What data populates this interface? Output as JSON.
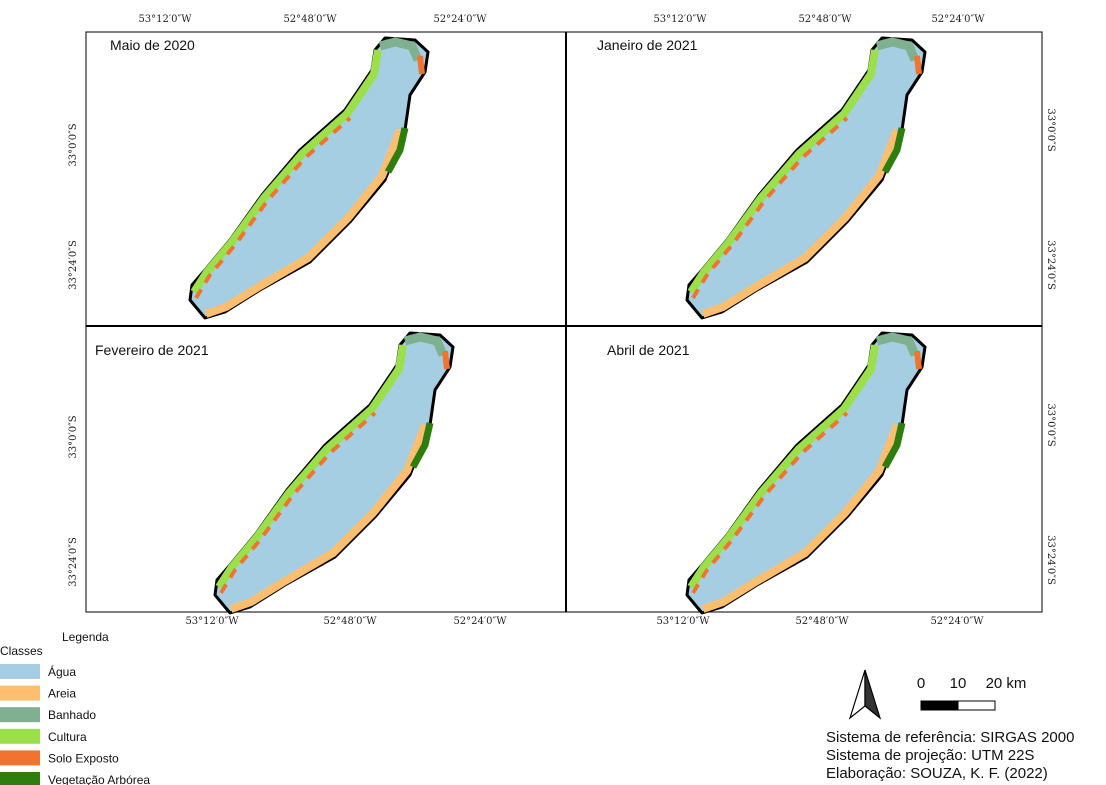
{
  "panels": [
    {
      "title": "Maio de 2020"
    },
    {
      "title": "Janeiro de 2021"
    },
    {
      "title": "Fevereiro de 2021"
    },
    {
      "title": "Abril de 2021"
    }
  ],
  "labels": {
    "top": [
      "53°12′0″W",
      "52°48′0″W",
      "52°24′0″W",
      "53°12′0″W",
      "52°48′0″W",
      "52°24′0″W"
    ],
    "bottom": [
      "53°12′0″W",
      "52°48′0″W",
      "52°24′0″W",
      "53°12′0″W",
      "52°48′0″W",
      "52°24′0″W"
    ],
    "left": [
      "33°0′0″S",
      "33°24′0″S",
      "33°0′0″S",
      "33°24′0″S"
    ],
    "right": [
      "33°0′0″S",
      "33°24′0″S",
      "33°0′0″S",
      "33°24′0″S"
    ]
  },
  "legend": {
    "title": "Legenda",
    "subtitle": "Classes",
    "items": [
      {
        "label": "Água",
        "color": "#a6cee3"
      },
      {
        "label": "Areia",
        "color": "#fdbf6f"
      },
      {
        "label": "Banhado",
        "color": "#7fb08f"
      },
      {
        "label": "Cultura",
        "color": "#9be04b"
      },
      {
        "label": "Solo Exposto",
        "color": "#f07430"
      },
      {
        "label": "Vegetação Arbórea",
        "color": "#2e7d0f"
      }
    ]
  },
  "scale": {
    "labels": [
      "0",
      "10",
      "20 km"
    ]
  },
  "credits": [
    "Sistema de referência: SIRGAS 2000",
    "Sistema de projeção: UTM 22S",
    "Elaboração: SOUZA, K. F. (2022)"
  ]
}
